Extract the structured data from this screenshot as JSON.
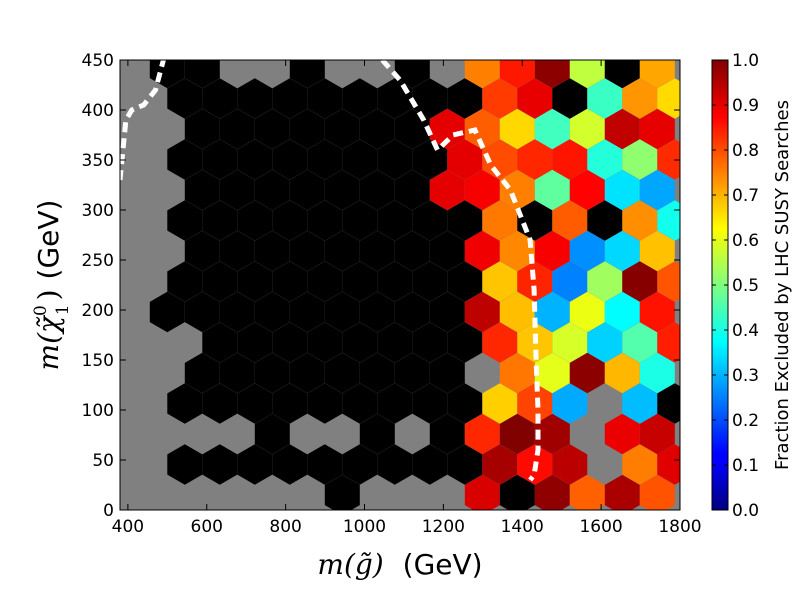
{
  "chart_data": {
    "type": "heatmap",
    "subtype": "hexbin",
    "title": "",
    "xlabel_math": "m(g̃)",
    "xlabel_unit": "(GeV)",
    "ylabel_math": "m(χ̃",
    "ylabel_sup": "0",
    "ylabel_sub": "1",
    "ylabel_close": ")",
    "ylabel_unit": "(GeV)",
    "xlim": [
      380,
      1800
    ],
    "ylim": [
      0,
      450
    ],
    "xticks": [
      "400",
      "600",
      "800",
      "1000",
      "1200",
      "1400",
      "1600",
      "1800"
    ],
    "yticks": [
      "0",
      "50",
      "100",
      "150",
      "200",
      "250",
      "300",
      "350",
      "400",
      "450"
    ],
    "colorbar": {
      "label": "Fraction Excluded by LHC SUSY Searches",
      "range": [
        0.0,
        1.0
      ],
      "ticks": [
        "0.0",
        "0.1",
        "0.2",
        "0.3",
        "0.4",
        "0.5",
        "0.6",
        "0.7",
        "0.8",
        "0.9",
        "1.0"
      ],
      "colormap": "jet"
    },
    "background_color": "#808080",
    "fully_excluded_color": "#000000",
    "fully_excluded_region": "m(g̃) below about 1300 GeV is excluded (fraction 1.0) for all m(χ̃) values",
    "excluded_hexes_sample_x_y": [
      [
        1220,
        370
      ],
      [
        1200,
        305
      ],
      [
        1260,
        355
      ]
    ],
    "mixed_region_x_range": [
      1300,
      1800
    ],
    "missing_hexes_x_y": [
      [
        520,
        160
      ],
      [
        560,
        80
      ],
      [
        700,
        80
      ],
      [
        850,
        80
      ],
      [
        940,
        80
      ],
      [
        1130,
        80
      ],
      [
        1300,
        135
      ],
      [
        1580,
        95
      ],
      [
        1580,
        60
      ]
    ],
    "exclusion_contour": {
      "style": "white dashed",
      "segments": [
        {
          "x": [
            380,
            395,
            410,
            440,
            470,
            490
          ],
          "y": [
            330,
            390,
            400,
            405,
            420,
            450
          ]
        },
        {
          "x": [
            1045,
            1090,
            1150,
            1185,
            1225,
            1280,
            1320,
            1370,
            1420,
            1430,
            1435,
            1440,
            1440,
            1430,
            1420
          ],
          "y": [
            450,
            430,
            390,
            360,
            375,
            380,
            345,
            320,
            270,
            220,
            150,
            100,
            60,
            35,
            30
          ]
        }
      ]
    }
  }
}
